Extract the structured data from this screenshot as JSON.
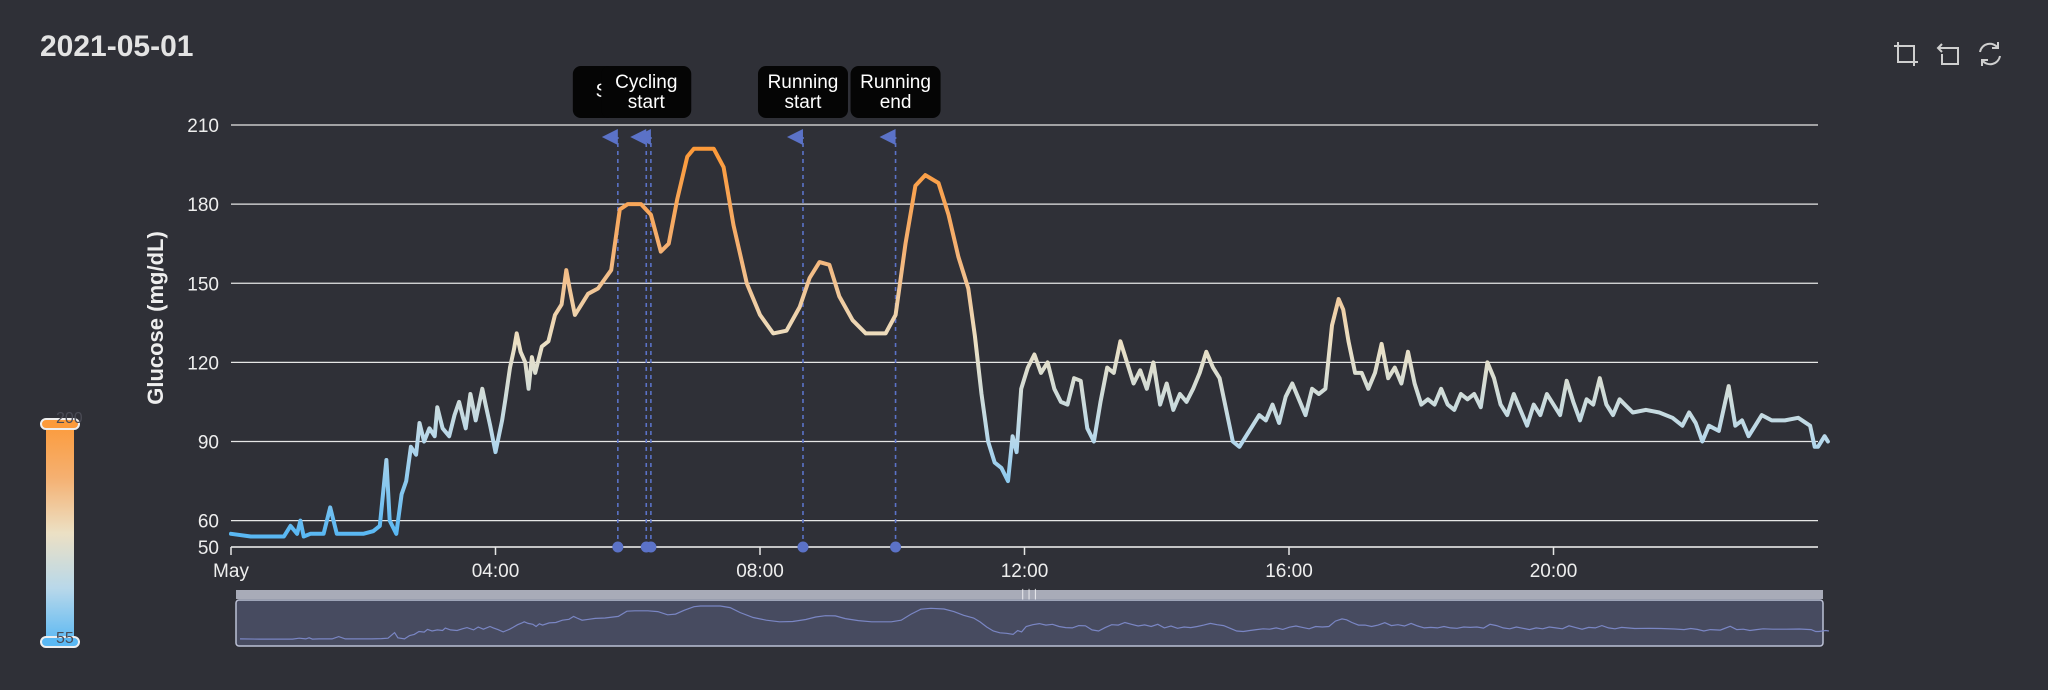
{
  "title": "2021-05-01",
  "toolbox": {
    "icons": [
      "zoom-icon",
      "zoom-reset-icon",
      "restore-icon"
    ]
  },
  "visual_map": {
    "max_label": "200",
    "min_label": "55",
    "min_value": 55,
    "max_value": 200,
    "colors": [
      "#5ab8f3",
      "#b8d8ea",
      "#ece0c4",
      "#f5b071",
      "#fc9a3a"
    ]
  },
  "chart_data": {
    "type": "line",
    "title": "2021-05-01",
    "xlabel": "",
    "ylabel": "Glucose (mg/dL)",
    "xlim": [
      0,
      24
    ],
    "ylim": [
      50,
      210
    ],
    "yticks": [
      50,
      60,
      90,
      120,
      150,
      180,
      210
    ],
    "xticks": [
      {
        "x": 0,
        "label": "May"
      },
      {
        "x": 4,
        "label": "04:00"
      },
      {
        "x": 8,
        "label": "08:00"
      },
      {
        "x": 12,
        "label": "12:00"
      },
      {
        "x": 16,
        "label": "16:00"
      },
      {
        "x": 20,
        "label": "20:00"
      }
    ],
    "grid": true,
    "series": [
      {
        "points": [
          [
            0.0,
            55
          ],
          [
            0.3,
            54
          ],
          [
            0.8,
            54
          ],
          [
            0.9,
            58
          ],
          [
            1.0,
            55
          ],
          [
            1.05,
            60
          ],
          [
            1.1,
            54
          ],
          [
            1.2,
            55
          ],
          [
            1.4,
            55
          ],
          [
            1.5,
            65
          ],
          [
            1.6,
            55
          ],
          [
            2.0,
            55
          ],
          [
            2.15,
            56
          ],
          [
            2.25,
            58
          ],
          [
            2.35,
            83
          ],
          [
            2.4,
            60
          ],
          [
            2.5,
            55
          ],
          [
            2.58,
            70
          ],
          [
            2.65,
            75
          ],
          [
            2.72,
            88
          ],
          [
            2.8,
            85
          ],
          [
            2.85,
            97
          ],
          [
            2.92,
            90
          ],
          [
            3.0,
            95
          ],
          [
            3.08,
            92
          ],
          [
            3.12,
            103
          ],
          [
            3.2,
            95
          ],
          [
            3.3,
            92
          ],
          [
            3.38,
            100
          ],
          [
            3.45,
            105
          ],
          [
            3.55,
            95
          ],
          [
            3.62,
            108
          ],
          [
            3.7,
            98
          ],
          [
            3.8,
            110
          ],
          [
            3.85,
            104
          ],
          [
            3.92,
            96
          ],
          [
            4.0,
            86
          ],
          [
            4.05,
            92
          ],
          [
            4.1,
            98
          ],
          [
            4.15,
            106
          ],
          [
            4.22,
            118
          ],
          [
            4.28,
            125
          ],
          [
            4.32,
            131
          ],
          [
            4.38,
            124
          ],
          [
            4.45,
            120
          ],
          [
            4.5,
            110
          ],
          [
            4.55,
            122
          ],
          [
            4.6,
            116
          ],
          [
            4.7,
            126
          ],
          [
            4.8,
            128
          ],
          [
            4.9,
            138
          ],
          [
            5.0,
            142
          ],
          [
            5.07,
            155
          ],
          [
            5.12,
            148
          ],
          [
            5.2,
            138
          ],
          [
            5.3,
            142
          ],
          [
            5.4,
            146
          ],
          [
            5.55,
            148
          ],
          [
            5.75,
            155
          ],
          [
            5.88,
            178
          ],
          [
            6.0,
            180
          ],
          [
            6.2,
            180
          ],
          [
            6.35,
            176
          ],
          [
            6.5,
            162
          ],
          [
            6.62,
            165
          ],
          [
            6.75,
            182
          ],
          [
            6.9,
            198
          ],
          [
            7.0,
            201
          ],
          [
            7.3,
            201
          ],
          [
            7.45,
            194
          ],
          [
            7.6,
            172
          ],
          [
            7.8,
            150
          ],
          [
            8.0,
            138
          ],
          [
            8.2,
            131
          ],
          [
            8.4,
            132
          ],
          [
            8.6,
            141
          ],
          [
            8.75,
            152
          ],
          [
            8.9,
            158
          ],
          [
            9.05,
            157
          ],
          [
            9.2,
            145
          ],
          [
            9.4,
            136
          ],
          [
            9.6,
            131
          ],
          [
            9.9,
            131
          ],
          [
            10.05,
            138
          ],
          [
            10.2,
            165
          ],
          [
            10.35,
            187
          ],
          [
            10.5,
            191
          ],
          [
            10.7,
            188
          ],
          [
            10.85,
            176
          ],
          [
            11.0,
            160
          ],
          [
            11.15,
            148
          ],
          [
            11.25,
            130
          ],
          [
            11.35,
            108
          ],
          [
            11.45,
            90
          ],
          [
            11.55,
            82
          ],
          [
            11.65,
            80
          ],
          [
            11.75,
            75
          ],
          [
            11.82,
            92
          ],
          [
            11.88,
            86
          ],
          [
            11.95,
            110
          ],
          [
            12.05,
            118
          ],
          [
            12.15,
            123
          ],
          [
            12.25,
            116
          ],
          [
            12.35,
            120
          ],
          [
            12.45,
            110
          ],
          [
            12.55,
            105
          ],
          [
            12.65,
            104
          ],
          [
            12.75,
            114
          ],
          [
            12.85,
            113
          ],
          [
            12.95,
            95
          ],
          [
            13.05,
            90
          ],
          [
            13.15,
            105
          ],
          [
            13.25,
            118
          ],
          [
            13.35,
            116
          ],
          [
            13.45,
            128
          ],
          [
            13.55,
            120
          ],
          [
            13.65,
            112
          ],
          [
            13.75,
            117
          ],
          [
            13.85,
            110
          ],
          [
            13.95,
            120
          ],
          [
            14.05,
            104
          ],
          [
            14.15,
            112
          ],
          [
            14.25,
            102
          ],
          [
            14.35,
            108
          ],
          [
            14.45,
            105
          ],
          [
            14.55,
            110
          ],
          [
            14.65,
            116
          ],
          [
            14.75,
            124
          ],
          [
            14.85,
            118
          ],
          [
            14.95,
            114
          ],
          [
            15.05,
            102
          ],
          [
            15.15,
            90
          ],
          [
            15.25,
            88
          ],
          [
            15.35,
            92
          ],
          [
            15.45,
            96
          ],
          [
            15.55,
            100
          ],
          [
            15.65,
            98
          ],
          [
            15.75,
            104
          ],
          [
            15.85,
            97
          ],
          [
            15.95,
            107
          ],
          [
            16.05,
            112
          ],
          [
            16.15,
            106
          ],
          [
            16.25,
            100
          ],
          [
            16.35,
            110
          ],
          [
            16.45,
            108
          ],
          [
            16.55,
            110
          ],
          [
            16.65,
            134
          ],
          [
            16.75,
            144
          ],
          [
            16.82,
            140
          ],
          [
            16.9,
            128
          ],
          [
            17.0,
            116
          ],
          [
            17.1,
            116
          ],
          [
            17.2,
            110
          ],
          [
            17.3,
            116
          ],
          [
            17.4,
            127
          ],
          [
            17.5,
            114
          ],
          [
            17.6,
            118
          ],
          [
            17.7,
            112
          ],
          [
            17.8,
            124
          ],
          [
            17.9,
            112
          ],
          [
            18.0,
            104
          ],
          [
            18.1,
            106
          ],
          [
            18.2,
            104
          ],
          [
            18.3,
            110
          ],
          [
            18.4,
            104
          ],
          [
            18.5,
            102
          ],
          [
            18.6,
            108
          ],
          [
            18.7,
            106
          ],
          [
            18.8,
            108
          ],
          [
            18.9,
            103
          ],
          [
            19.0,
            120
          ],
          [
            19.1,
            114
          ],
          [
            19.2,
            104
          ],
          [
            19.3,
            100
          ],
          [
            19.4,
            108
          ],
          [
            19.5,
            102
          ],
          [
            19.6,
            96
          ],
          [
            19.7,
            104
          ],
          [
            19.8,
            100
          ],
          [
            19.9,
            108
          ],
          [
            20.0,
            104
          ],
          [
            20.1,
            100
          ],
          [
            20.2,
            113
          ],
          [
            20.3,
            105
          ],
          [
            20.4,
            98
          ],
          [
            20.5,
            106
          ],
          [
            20.6,
            104
          ],
          [
            20.7,
            114
          ],
          [
            20.8,
            104
          ],
          [
            20.9,
            100
          ],
          [
            21.0,
            106
          ],
          [
            21.2,
            101
          ],
          [
            21.4,
            102
          ],
          [
            21.6,
            101
          ],
          [
            21.8,
            99
          ],
          [
            21.95,
            96
          ],
          [
            22.05,
            101
          ],
          [
            22.15,
            97
          ],
          [
            22.25,
            90
          ],
          [
            22.35,
            96
          ],
          [
            22.5,
            94
          ],
          [
            22.65,
            111
          ],
          [
            22.75,
            96
          ],
          [
            22.85,
            98
          ],
          [
            22.95,
            92
          ],
          [
            23.05,
            96
          ],
          [
            23.15,
            100
          ],
          [
            23.3,
            98
          ],
          [
            23.5,
            98
          ],
          [
            23.7,
            99
          ],
          [
            23.88,
            96
          ],
          [
            23.95,
            88
          ],
          [
            24.0,
            88
          ],
          [
            24.1,
            92
          ],
          [
            24.15,
            90
          ]
        ]
      }
    ],
    "annotations": [
      {
        "x": 5.85,
        "label": "Sw S"
      },
      {
        "x": 6.28,
        "label": "Cycling start"
      },
      {
        "x": 6.35,
        "label": ""
      },
      {
        "x": 8.65,
        "label": "Running start"
      },
      {
        "x": 10.05,
        "label": "Running end"
      }
    ],
    "mark_colors": {
      "line": "#5b72c7",
      "point": "#5b72c7"
    }
  },
  "data_zoom": {
    "start": 0,
    "end": 100
  }
}
